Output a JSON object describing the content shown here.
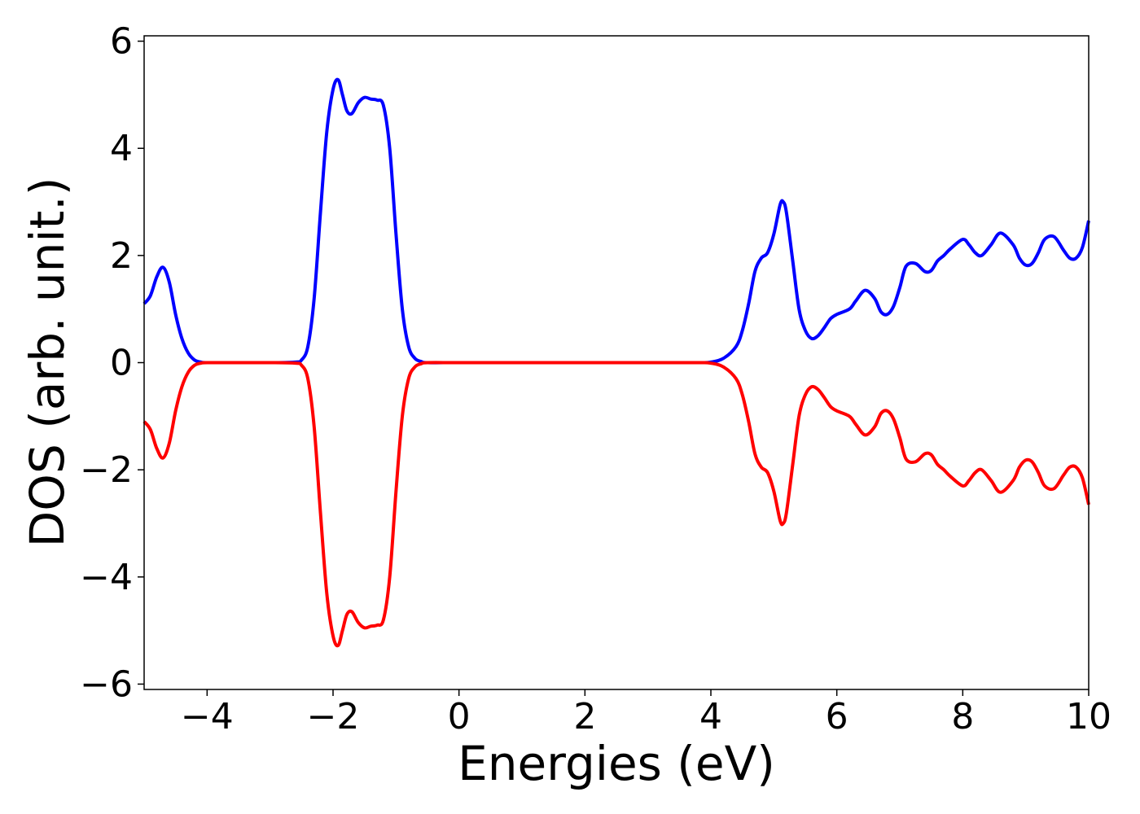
{
  "chart_data": {
    "type": "line",
    "xlabel": "Energies (eV)",
    "ylabel": "DOS (arb. unit.)",
    "xlim": [
      -5,
      10
    ],
    "ylim": [
      -6.1,
      6.1
    ],
    "xticks": [
      -4,
      -2,
      0,
      2,
      4,
      6,
      8,
      10
    ],
    "xtick_labels": [
      "−4",
      "−2",
      "0",
      "2",
      "4",
      "6",
      "8",
      "10"
    ],
    "yticks": [
      -6,
      -4,
      -2,
      0,
      2,
      4,
      6
    ],
    "ytick_labels": [
      "−6",
      "−4",
      "−2",
      "0",
      "2",
      "4",
      "6"
    ],
    "grid": false,
    "legend": false,
    "series": [
      {
        "color": "#0000ff",
        "x": [
          -5.0,
          -4.9,
          -4.8,
          -4.7,
          -4.6,
          -4.5,
          -4.4,
          -4.3,
          -4.2,
          -4.1,
          -4.0,
          -3.5,
          -3.0,
          -2.6,
          -2.5,
          -2.4,
          -2.3,
          -2.2,
          -2.1,
          -2.0,
          -1.92,
          -1.85,
          -1.78,
          -1.7,
          -1.6,
          -1.5,
          -1.4,
          -1.3,
          -1.2,
          -1.1,
          -1.0,
          -0.9,
          -0.8,
          -0.7,
          -0.6,
          -0.5,
          0.0,
          1.0,
          2.0,
          3.0,
          3.8,
          4.0,
          4.2,
          4.4,
          4.5,
          4.6,
          4.7,
          4.8,
          4.9,
          5.0,
          5.1,
          5.15,
          5.2,
          5.3,
          5.4,
          5.5,
          5.6,
          5.7,
          5.8,
          5.9,
          6.0,
          6.2,
          6.3,
          6.45,
          6.6,
          6.7,
          6.8,
          6.9,
          7.0,
          7.1,
          7.25,
          7.4,
          7.5,
          7.6,
          7.7,
          7.8,
          8.0,
          8.1,
          8.2,
          8.3,
          8.45,
          8.6,
          8.8,
          8.9,
          9.0,
          9.1,
          9.2,
          9.3,
          9.45,
          9.6,
          9.7,
          9.8,
          9.9,
          10.0
        ],
        "y": [
          1.1,
          1.25,
          1.6,
          1.78,
          1.5,
          0.9,
          0.45,
          0.18,
          0.05,
          0.01,
          0.0,
          0.0,
          0.0,
          0.01,
          0.05,
          0.3,
          1.2,
          2.8,
          4.3,
          5.1,
          5.28,
          5.0,
          4.7,
          4.65,
          4.85,
          4.95,
          4.92,
          4.9,
          4.8,
          4.0,
          2.4,
          1.0,
          0.3,
          0.08,
          0.02,
          0.0,
          0.0,
          0.0,
          0.0,
          0.0,
          0.0,
          0.01,
          0.08,
          0.3,
          0.6,
          1.1,
          1.7,
          1.95,
          2.05,
          2.4,
          2.95,
          3.0,
          2.8,
          1.9,
          1.0,
          0.6,
          0.45,
          0.5,
          0.65,
          0.82,
          0.9,
          1.0,
          1.15,
          1.35,
          1.2,
          0.95,
          0.9,
          1.05,
          1.4,
          1.8,
          1.85,
          1.7,
          1.72,
          1.9,
          2.0,
          2.12,
          2.3,
          2.2,
          2.05,
          2.0,
          2.2,
          2.42,
          2.2,
          1.95,
          1.82,
          1.85,
          2.05,
          2.3,
          2.35,
          2.1,
          1.95,
          1.95,
          2.15,
          2.65
        ]
      },
      {
        "color": "#ff0000",
        "x": [
          -5.0,
          -4.9,
          -4.8,
          -4.7,
          -4.6,
          -4.5,
          -4.4,
          -4.3,
          -4.2,
          -4.1,
          -4.0,
          -3.5,
          -3.0,
          -2.6,
          -2.5,
          -2.4,
          -2.3,
          -2.2,
          -2.1,
          -2.0,
          -1.92,
          -1.85,
          -1.78,
          -1.7,
          -1.6,
          -1.5,
          -1.4,
          -1.3,
          -1.2,
          -1.1,
          -1.0,
          -0.9,
          -0.8,
          -0.7,
          -0.6,
          -0.5,
          0.0,
          1.0,
          2.0,
          3.0,
          3.8,
          4.0,
          4.2,
          4.4,
          4.5,
          4.6,
          4.7,
          4.8,
          4.9,
          5.0,
          5.1,
          5.15,
          5.2,
          5.3,
          5.4,
          5.5,
          5.6,
          5.7,
          5.8,
          5.9,
          6.0,
          6.2,
          6.3,
          6.45,
          6.6,
          6.7,
          6.8,
          6.9,
          7.0,
          7.1,
          7.25,
          7.4,
          7.5,
          7.6,
          7.7,
          7.8,
          8.0,
          8.1,
          8.2,
          8.3,
          8.45,
          8.6,
          8.8,
          8.9,
          9.0,
          9.1,
          9.2,
          9.3,
          9.45,
          9.6,
          9.7,
          9.8,
          9.9,
          10.0
        ],
        "y": [
          -1.1,
          -1.25,
          -1.6,
          -1.78,
          -1.5,
          -0.9,
          -0.45,
          -0.18,
          -0.05,
          -0.01,
          0.0,
          0.0,
          0.0,
          -0.01,
          -0.05,
          -0.3,
          -1.2,
          -2.8,
          -4.3,
          -5.1,
          -5.28,
          -5.0,
          -4.7,
          -4.65,
          -4.85,
          -4.95,
          -4.92,
          -4.9,
          -4.8,
          -4.0,
          -2.4,
          -1.0,
          -0.3,
          -0.08,
          -0.02,
          0.0,
          0.0,
          0.0,
          0.0,
          0.0,
          0.0,
          -0.01,
          -0.08,
          -0.3,
          -0.6,
          -1.1,
          -1.7,
          -1.95,
          -2.05,
          -2.4,
          -2.95,
          -3.0,
          -2.8,
          -1.9,
          -1.0,
          -0.6,
          -0.45,
          -0.5,
          -0.65,
          -0.82,
          -0.9,
          -1.0,
          -1.15,
          -1.35,
          -1.2,
          -0.95,
          -0.9,
          -1.05,
          -1.4,
          -1.8,
          -1.85,
          -1.7,
          -1.72,
          -1.9,
          -2.0,
          -2.12,
          -2.3,
          -2.2,
          -2.05,
          -2.0,
          -2.2,
          -2.42,
          -2.2,
          -1.95,
          -1.82,
          -1.85,
          -2.05,
          -2.3,
          -2.35,
          -2.1,
          -1.95,
          -1.95,
          -2.15,
          -2.65
        ]
      }
    ]
  }
}
